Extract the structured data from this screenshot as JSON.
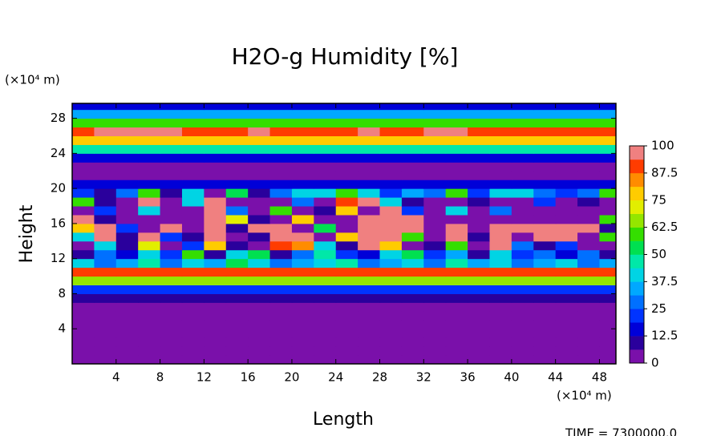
{
  "chart_data": {
    "type": "heatmap",
    "title": "H2O-g Humidity [%]",
    "x_label": "Length",
    "y_label": "Height",
    "x_unit": "(×10⁴ m)",
    "y_unit": "(×10⁴ m)",
    "time_label": "TIME = 7300000.0",
    "xlim": [
      0,
      49.5
    ],
    "ylim": [
      0,
      29.7
    ],
    "xticks": [
      4,
      8,
      12,
      16,
      20,
      24,
      28,
      32,
      36,
      40,
      44,
      48
    ],
    "yticks": [
      4,
      8,
      12,
      16,
      20,
      24,
      28
    ],
    "x_edges": [
      0,
      2,
      4,
      6,
      8,
      10,
      12,
      14,
      16,
      18,
      20,
      22,
      24,
      26,
      28,
      30,
      32,
      34,
      36,
      38,
      40,
      42,
      44,
      46,
      48,
      50
    ],
    "y_edges": [
      0,
      1,
      2,
      3,
      4,
      5,
      6,
      7,
      8,
      9,
      10,
      11,
      12,
      13,
      14,
      15,
      16,
      17,
      18,
      19,
      20,
      21,
      22,
      23,
      24,
      25,
      26,
      27,
      28,
      29,
      30
    ],
    "z": [
      [
        3,
        3,
        3,
        3,
        3,
        3,
        3,
        3,
        3,
        3,
        3,
        3,
        3,
        3,
        3,
        3,
        3,
        3,
        3,
        3,
        3,
        3,
        3,
        3,
        3
      ],
      [
        3,
        3,
        3,
        3,
        3,
        3,
        3,
        3,
        3,
        3,
        3,
        3,
        3,
        3,
        3,
        3,
        3,
        3,
        3,
        3,
        3,
        3,
        3,
        3,
        3
      ],
      [
        3,
        3,
        3,
        3,
        3,
        3,
        3,
        3,
        3,
        3,
        3,
        3,
        3,
        3,
        3,
        3,
        3,
        3,
        3,
        3,
        3,
        3,
        3,
        3,
        3
      ],
      [
        3,
        3,
        3,
        3,
        3,
        3,
        3,
        3,
        3,
        3,
        3,
        3,
        3,
        3,
        3,
        3,
        3,
        3,
        3,
        3,
        3,
        3,
        3,
        3,
        3
      ],
      [
        3,
        3,
        3,
        3,
        3,
        3,
        3,
        3,
        3,
        3,
        3,
        3,
        3,
        3,
        3,
        3,
        3,
        3,
        3,
        3,
        3,
        3,
        3,
        3,
        3
      ],
      [
        3,
        3,
        3,
        3,
        3,
        3,
        3,
        3,
        3,
        3,
        3,
        3,
        3,
        3,
        3,
        3,
        3,
        3,
        3,
        3,
        3,
        3,
        3,
        3,
        3
      ],
      [
        3,
        3,
        3,
        3,
        3,
        3,
        3,
        3,
        3,
        3,
        3,
        3,
        3,
        3,
        3,
        3,
        3,
        3,
        3,
        3,
        3,
        3,
        3,
        3,
        3
      ],
      [
        8,
        8,
        8,
        8,
        8,
        8,
        8,
        8,
        8,
        8,
        8,
        8,
        8,
        8,
        8,
        8,
        8,
        8,
        8,
        8,
        8,
        8,
        8,
        8,
        8
      ],
      [
        22,
        22,
        22,
        22,
        22,
        22,
        22,
        22,
        22,
        22,
        22,
        22,
        22,
        22,
        22,
        22,
        22,
        22,
        22,
        22,
        22,
        22,
        22,
        22,
        22
      ],
      [
        65,
        65,
        65,
        65,
        65,
        65,
        65,
        65,
        65,
        65,
        65,
        65,
        65,
        65,
        65,
        65,
        65,
        65,
        65,
        65,
        65,
        65,
        65,
        65,
        65
      ],
      [
        92,
        92,
        92,
        92,
        92,
        92,
        92,
        92,
        92,
        92,
        92,
        92,
        92,
        92,
        92,
        92,
        92,
        92,
        92,
        92,
        92,
        92,
        92,
        92,
        92
      ],
      [
        40,
        30,
        35,
        45,
        30,
        40,
        35,
        50,
        40,
        30,
        35,
        40,
        45,
        30,
        35,
        40,
        30,
        45,
        35,
        40,
        30,
        35,
        40,
        30,
        35
      ],
      [
        10,
        30,
        15,
        40,
        20,
        60,
        10,
        40,
        50,
        10,
        30,
        45,
        20,
        15,
        40,
        50,
        20,
        35,
        10,
        40,
        20,
        30,
        15,
        25,
        10
      ],
      [
        5,
        40,
        10,
        70,
        5,
        20,
        80,
        10,
        5,
        90,
        85,
        40,
        10,
        100,
        80,
        5,
        10,
        60,
        5,
        100,
        30,
        10,
        20,
        5,
        5
      ],
      [
        40,
        100,
        10,
        100,
        20,
        10,
        100,
        5,
        10,
        100,
        100,
        5,
        80,
        100,
        100,
        60,
        5,
        100,
        10,
        100,
        5,
        100,
        100,
        5,
        60
      ],
      [
        80,
        100,
        20,
        5,
        100,
        5,
        100,
        10,
        100,
        100,
        5,
        50,
        5,
        100,
        100,
        100,
        5,
        100,
        5,
        100,
        100,
        100,
        100,
        100,
        10
      ],
      [
        100,
        10,
        5,
        5,
        5,
        5,
        100,
        70,
        10,
        5,
        80,
        5,
        5,
        100,
        100,
        100,
        5,
        5,
        5,
        5,
        5,
        5,
        5,
        5,
        60
      ],
      [
        5,
        20,
        5,
        40,
        5,
        5,
        100,
        30,
        5,
        60,
        5,
        10,
        80,
        5,
        100,
        20,
        5,
        40,
        5,
        30,
        5,
        5,
        5,
        5,
        5
      ],
      [
        60,
        10,
        5,
        100,
        5,
        40,
        100,
        5,
        5,
        5,
        30,
        5,
        90,
        100,
        40,
        10,
        5,
        5,
        10,
        5,
        5,
        20,
        5,
        10,
        5
      ],
      [
        20,
        10,
        30,
        60,
        10,
        40,
        5,
        50,
        10,
        30,
        40,
        40,
        60,
        40,
        20,
        35,
        30,
        60,
        20,
        40,
        40,
        30,
        20,
        30,
        60
      ],
      [
        15,
        15,
        15,
        15,
        15,
        15,
        15,
        15,
        15,
        15,
        15,
        15,
        15,
        15,
        15,
        15,
        15,
        15,
        15,
        15,
        15,
        15,
        15,
        15,
        15
      ],
      [
        4,
        4,
        4,
        4,
        4,
        4,
        4,
        4,
        4,
        4,
        4,
        4,
        4,
        4,
        4,
        4,
        4,
        4,
        4,
        4,
        4,
        4,
        4,
        4,
        4
      ],
      [
        4,
        4,
        4,
        4,
        4,
        4,
        4,
        4,
        4,
        4,
        4,
        4,
        4,
        4,
        4,
        4,
        4,
        4,
        4,
        4,
        4,
        4,
        4,
        4,
        4
      ],
      [
        15,
        15,
        15,
        15,
        15,
        15,
        15,
        15,
        15,
        15,
        15,
        15,
        15,
        15,
        15,
        15,
        15,
        15,
        15,
        15,
        15,
        15,
        15,
        15,
        15
      ],
      [
        45,
        45,
        45,
        45,
        45,
        45,
        45,
        45,
        45,
        45,
        45,
        45,
        45,
        45,
        45,
        45,
        45,
        45,
        45,
        45,
        45,
        45,
        45,
        45,
        45
      ],
      [
        75,
        75,
        75,
        75,
        75,
        75,
        75,
        75,
        75,
        75,
        75,
        75,
        75,
        75,
        75,
        75,
        75,
        75,
        75,
        75,
        75,
        75,
        75,
        75,
        75
      ],
      [
        90,
        95,
        95,
        95,
        95,
        92,
        88,
        92,
        95,
        92,
        92,
        92,
        92,
        95,
        92,
        92,
        95,
        95,
        92,
        92,
        92,
        92,
        92,
        92,
        90
      ],
      [
        62,
        62,
        62,
        62,
        62,
        62,
        62,
        62,
        62,
        62,
        62,
        62,
        62,
        62,
        62,
        62,
        62,
        62,
        62,
        62,
        62,
        62,
        62,
        62,
        62
      ],
      [
        35,
        35,
        35,
        35,
        35,
        35,
        35,
        35,
        35,
        35,
        35,
        35,
        35,
        35,
        35,
        35,
        35,
        35,
        35,
        35,
        35,
        35,
        35,
        35,
        35
      ],
      [
        15,
        15,
        15,
        15,
        15,
        15,
        15,
        15,
        15,
        15,
        15,
        15,
        15,
        15,
        15,
        15,
        15,
        15,
        15,
        15,
        15,
        15,
        15,
        15,
        15
      ]
    ],
    "colorbar": {
      "levels": [
        0,
        6.25,
        12.5,
        18.75,
        25,
        31.25,
        37.5,
        43.75,
        50,
        56.25,
        62.5,
        68.75,
        75,
        81.25,
        87.5,
        93.75,
        100
      ],
      "colors": [
        "#7a10aa",
        "#2a009c",
        "#0000d8",
        "#0034ff",
        "#0070ff",
        "#00a8ff",
        "#00d4e4",
        "#00e8a8",
        "#00e050",
        "#34de00",
        "#94e600",
        "#e2ee00",
        "#ffcc00",
        "#ff8c00",
        "#ff3c00",
        "#f08080"
      ],
      "ticks": [
        0,
        12.5,
        25,
        37.5,
        50,
        62.5,
        75,
        87.5,
        100
      ]
    }
  }
}
